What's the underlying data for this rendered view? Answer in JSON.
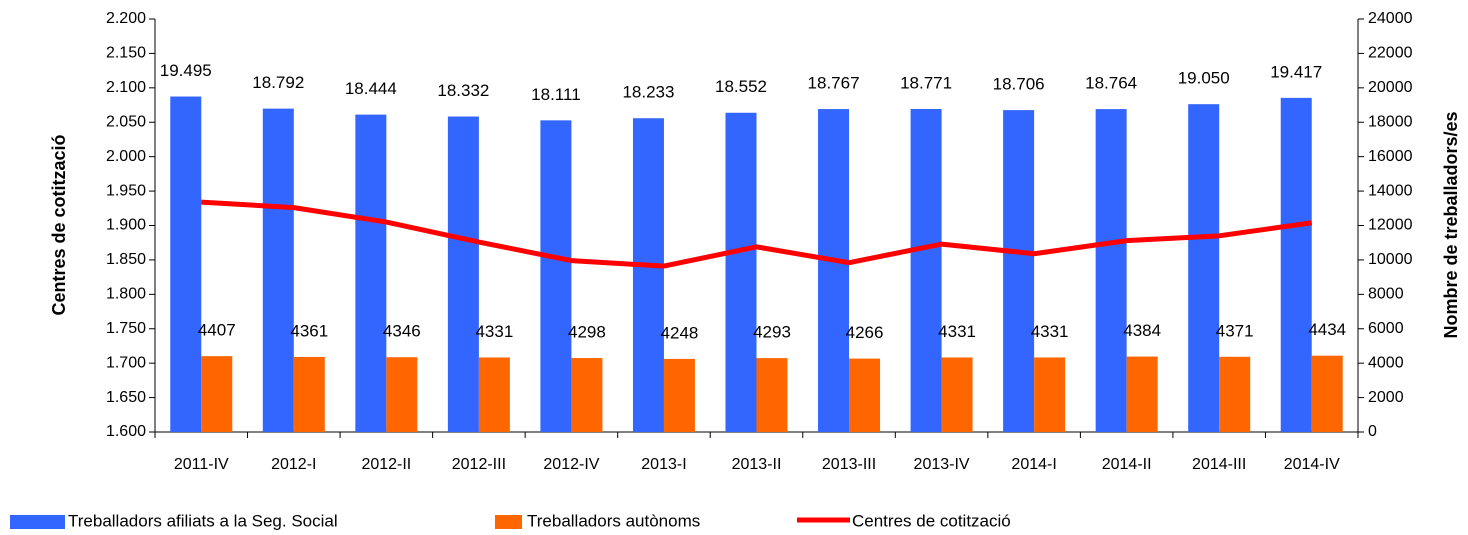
{
  "chart_data": {
    "type": "bar",
    "categories": [
      "2011-IV",
      "2012-I",
      "2012-II",
      "2012-III",
      "2012-IV",
      "2013-I",
      "2013-II",
      "2013-III",
      "2013-IV",
      "2014-I",
      "2014-II",
      "2014-III",
      "2014-IV"
    ],
    "y_label": "Centres de cotització",
    "y2_label": "Nombre de treballadors/es",
    "ylim": [
      1600,
      2200
    ],
    "yticks": [
      {
        "value": 1600,
        "label": "1.600"
      },
      {
        "value": 1650,
        "label": "1.650"
      },
      {
        "value": 1700,
        "label": "1.700"
      },
      {
        "value": 1750,
        "label": "1.750"
      },
      {
        "value": 1800,
        "label": "1.800"
      },
      {
        "value": 1850,
        "label": "1.850"
      },
      {
        "value": 1900,
        "label": "1.900"
      },
      {
        "value": 1950,
        "label": "1.950"
      },
      {
        "value": 2000,
        "label": "2.000"
      },
      {
        "value": 2050,
        "label": "2.050"
      },
      {
        "value": 2100,
        "label": "2.100"
      },
      {
        "value": 2150,
        "label": "2.150"
      },
      {
        "value": 2200,
        "label": "2.200"
      }
    ],
    "y2lim": [
      0,
      24000
    ],
    "y2ticks": [
      0,
      2000,
      4000,
      6000,
      8000,
      10000,
      12000,
      14000,
      16000,
      18000,
      20000,
      22000,
      24000
    ],
    "legend": "bottom",
    "series": [
      {
        "name": "Treballadors afiliats a la Seg. Social",
        "color": "#3366ff",
        "type": "bar",
        "axis": "y2",
        "values": [
          19495,
          18792,
          18444,
          18332,
          18111,
          18233,
          18552,
          18767,
          18771,
          18706,
          18764,
          19050,
          19417
        ],
        "value_labels": [
          "19.495",
          "18.792",
          "18.444",
          "18.332",
          "18.111",
          "18.233",
          "18.552",
          "18.767",
          "18.771",
          "18.706",
          "18.764",
          "19.050",
          "19.417"
        ]
      },
      {
        "name": "Treballadors autònoms",
        "color": "#ff6600",
        "type": "bar",
        "axis": "y2",
        "values": [
          4407,
          4361,
          4346,
          4331,
          4298,
          4248,
          4293,
          4266,
          4331,
          4331,
          4384,
          4371,
          4434
        ]
      },
      {
        "name": "Centres de cotització",
        "color": "#ff0000",
        "type": "line",
        "values": [
          1934,
          1926,
          1905,
          1876,
          1849,
          1841,
          1869,
          1846,
          1873,
          1859,
          1878,
          1885,
          1904
        ]
      }
    ]
  }
}
